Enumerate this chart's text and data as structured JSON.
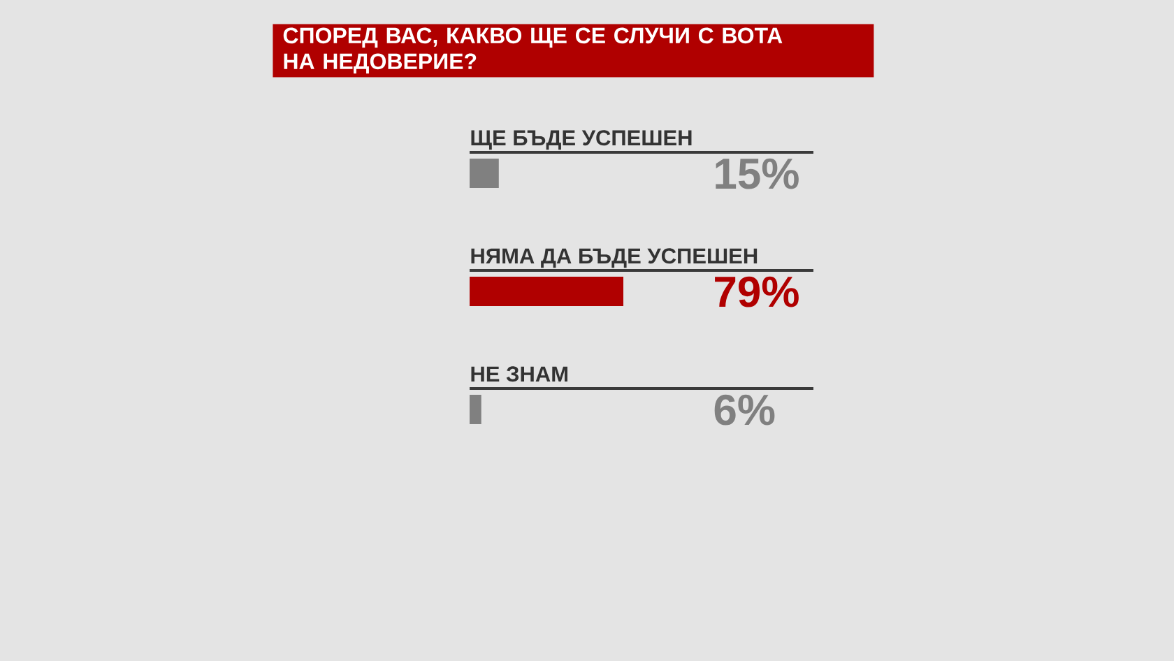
{
  "chart_data": {
    "type": "bar",
    "orientation": "horizontal",
    "title": "СПОРЕД ВАС, КАКВО ЩЕ СЕ СЛУЧИ С ВОТА НА НЕДОВЕРИЕ?",
    "categories": [
      "ЩЕ БЪДЕ УСПЕШЕН",
      "НЯМА ДА БЪДЕ УСПЕШЕН",
      "НЕ ЗНАМ"
    ],
    "values": [
      15,
      79,
      6
    ],
    "colors": [
      "#808080",
      "#b00000",
      "#808080"
    ],
    "value_labels": [
      "15%",
      "79%",
      "6%"
    ]
  }
}
